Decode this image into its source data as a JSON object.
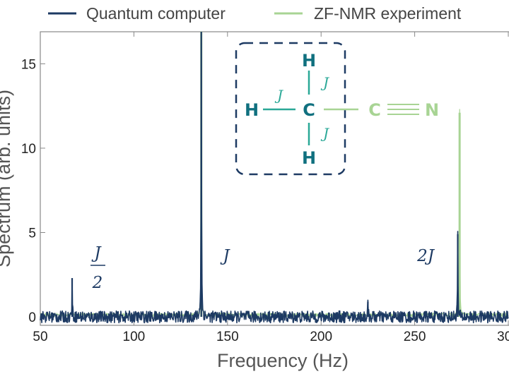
{
  "chart_data": {
    "type": "line",
    "xlabel": "Frequency (Hz)",
    "ylabel": "Spectrum (arb. units)",
    "xlim": [
      50,
      300
    ],
    "ylim": [
      -0.5,
      16.9
    ],
    "xticks": [
      "50",
      "100",
      "150",
      "200",
      "250",
      "300"
    ],
    "xtick_values": [
      50,
      100,
      150,
      200,
      250,
      300
    ],
    "yticks": [
      "0",
      "5",
      "10",
      "15"
    ],
    "ytick_values": [
      0,
      5,
      10,
      15
    ],
    "grid": false,
    "legend_position": "top",
    "series": [
      {
        "name": "Quantum computer",
        "color": "#1d3a63",
        "peaks": [
          {
            "x": 67,
            "y": 2.3
          },
          {
            "x": 136,
            "y": 16.9
          },
          {
            "x": 225,
            "y": 0.9
          },
          {
            "x": 273,
            "y": 4.9
          }
        ]
      },
      {
        "name": "ZF-NMR experiment",
        "color": "#a8d494",
        "peaks": [
          {
            "x": 136,
            "y": 16.9
          },
          {
            "x": 274,
            "y": 12.1
          }
        ]
      }
    ],
    "annotations": [
      {
        "numerator": "J",
        "denominator": "2"
      },
      {
        "text": "J"
      },
      {
        "text": "2J"
      }
    ],
    "inset": {
      "atoms": {
        "h_top": "H",
        "h_left": "H",
        "h_bottom": "H",
        "c_methyl": "C",
        "c_nitrile": "C",
        "n": "N"
      },
      "coupling_label": "J",
      "colors": {
        "methyl": "#10707f",
        "coupling": "#2aa897",
        "nitrile": "#a8d494",
        "box": "#1d3a63"
      }
    }
  }
}
